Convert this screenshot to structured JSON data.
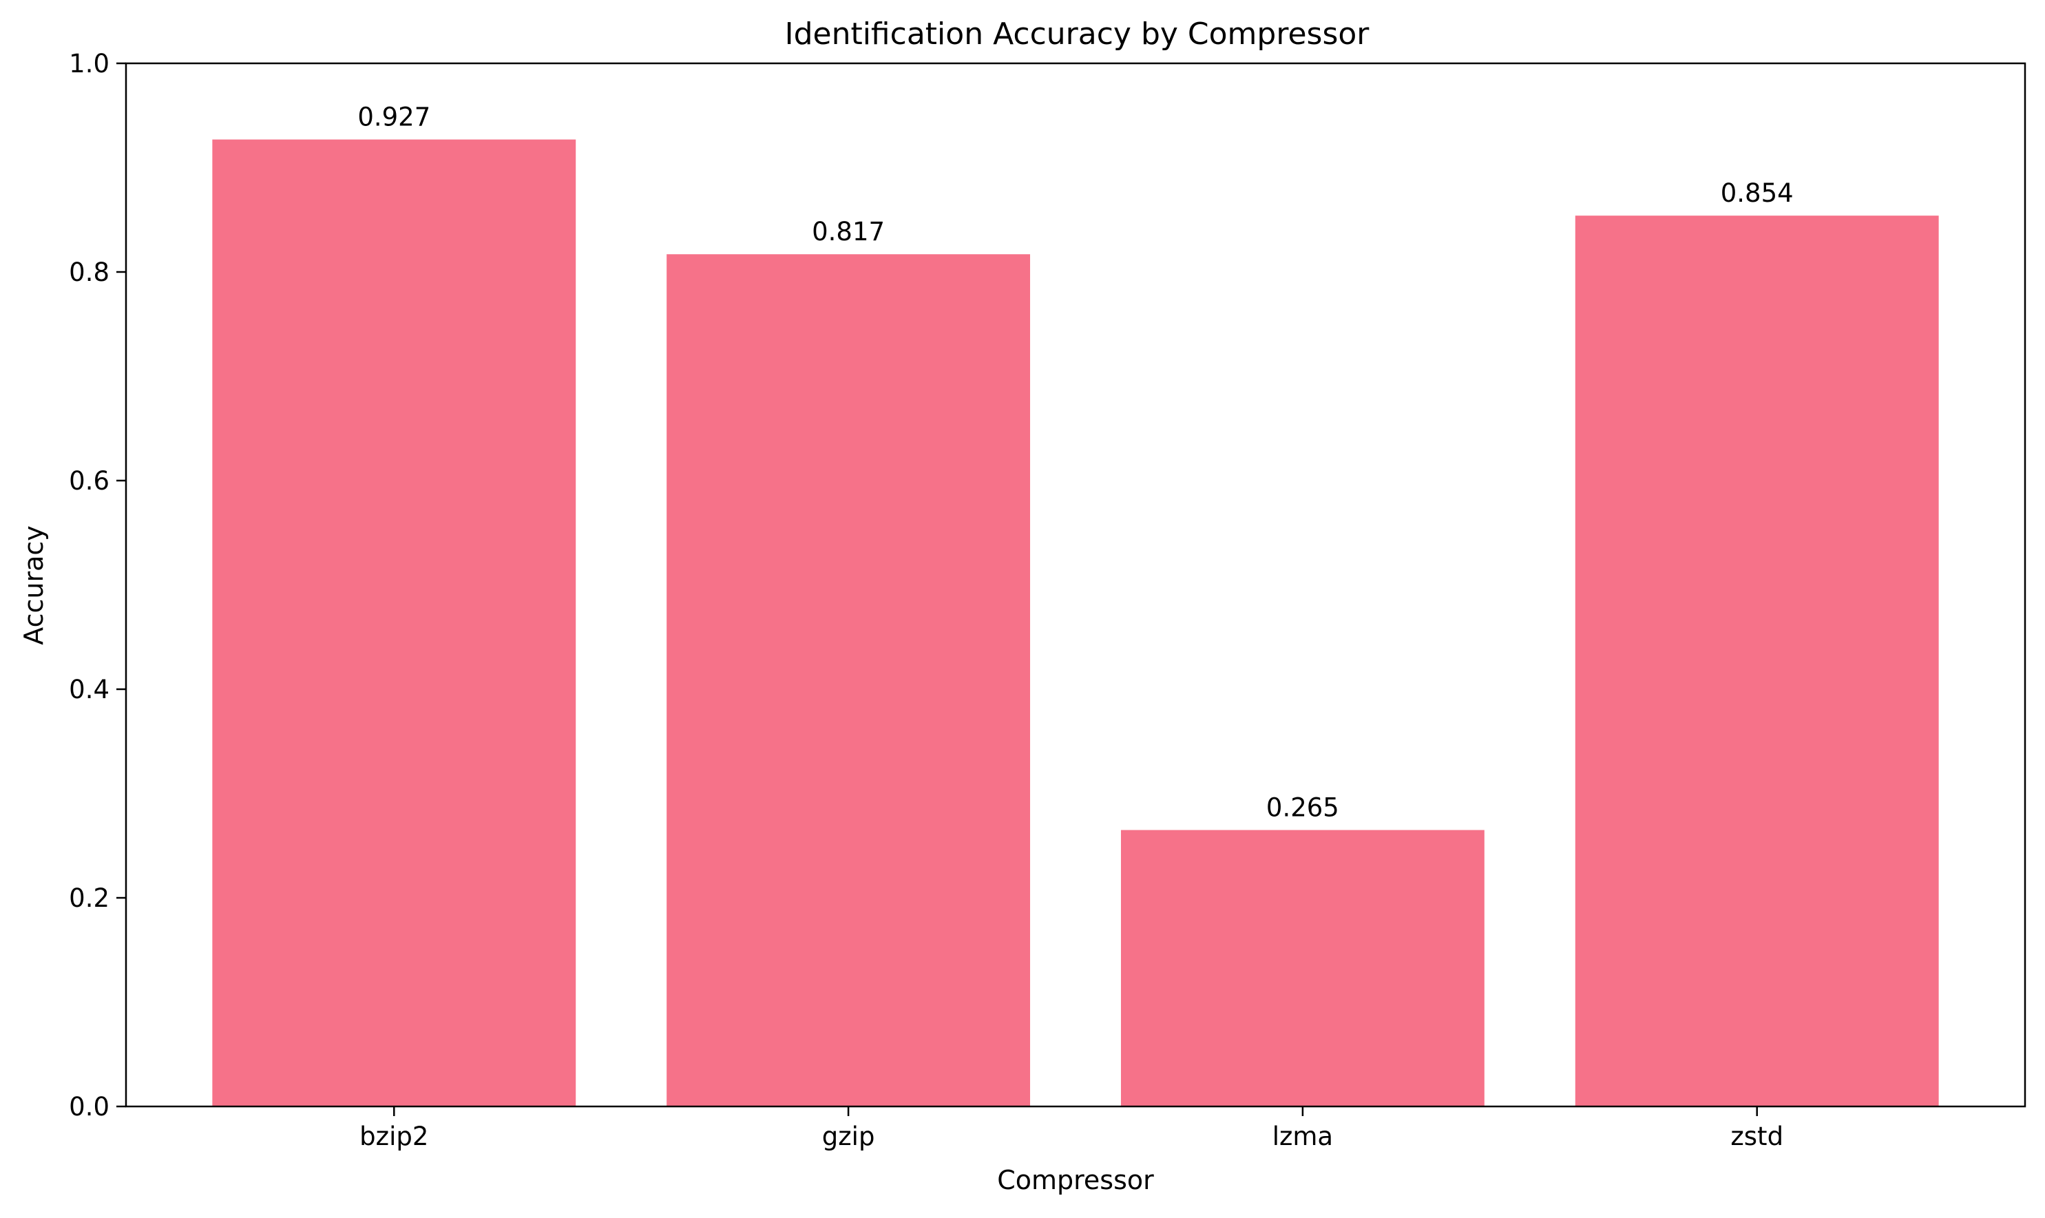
{
  "chart_data": {
    "type": "bar",
    "title": "Identification Accuracy by Compressor",
    "xlabel": "Compressor",
    "ylabel": "Accuracy",
    "categories": [
      "bzip2",
      "gzip",
      "lzma",
      "zstd"
    ],
    "values": [
      0.927,
      0.817,
      0.265,
      0.854
    ],
    "value_labels": [
      "0.927",
      "0.817",
      "0.265",
      "0.854"
    ],
    "ylim": [
      0,
      1.0
    ],
    "yticks": [
      0.0,
      0.2,
      0.4,
      0.6,
      0.8,
      1.0
    ],
    "ytick_labels": [
      "0.0",
      "0.2",
      "0.4",
      "0.6",
      "0.8",
      "1.0"
    ],
    "grid": false,
    "legend": "none",
    "bar_color": "#f67289"
  }
}
